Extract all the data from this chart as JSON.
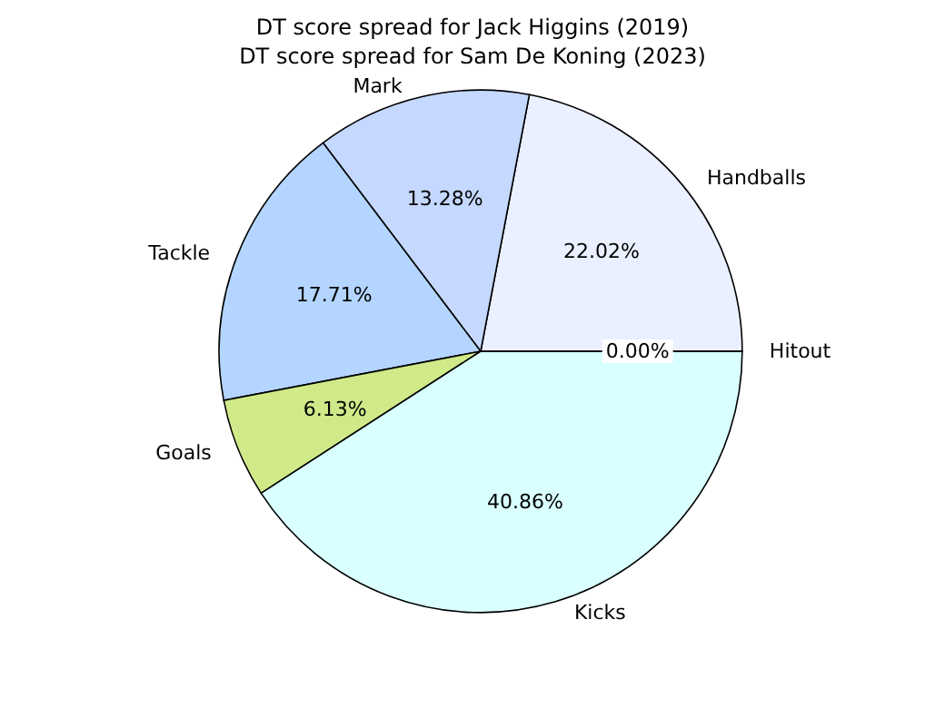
{
  "chart_data": {
    "type": "pie",
    "title": "DT score spread for Sam De Koning (2023)",
    "subtitle": "DT score spread for Jack Higgins (2019)",
    "categories": [
      "Handballs",
      "Mark",
      "Tackle",
      "Goals",
      "Kicks",
      "Hitout"
    ],
    "values": [
      22.02,
      13.28,
      17.71,
      6.13,
      40.86,
      0.0
    ],
    "value_labels": [
      "22.02%",
      "13.28%",
      "17.71%",
      "6.13%",
      "40.86%",
      "0.00%"
    ],
    "colors": [
      "#eaf0ff",
      "#c5d8ff",
      "#b3d5ff",
      "#d0ea8a",
      "#d9ffff",
      "#cfeaea"
    ]
  }
}
